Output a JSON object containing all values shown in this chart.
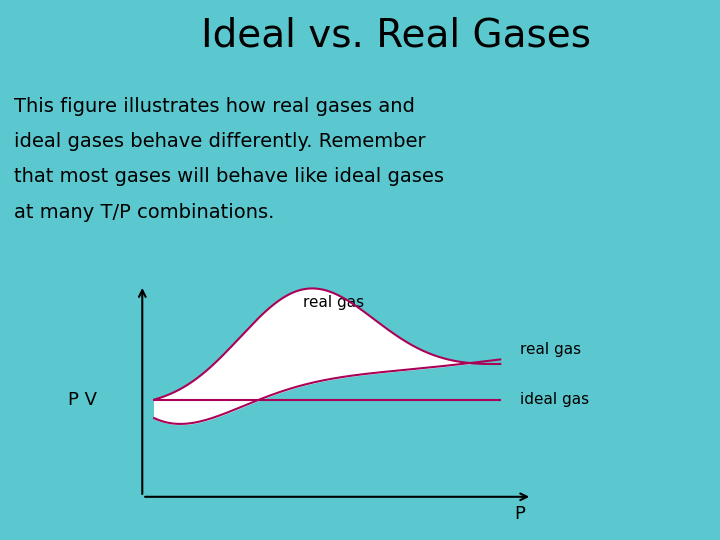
{
  "bg_color": "#5BC8D0",
  "title": "Ideal vs. Real Gases",
  "title_fontsize": 28,
  "title_color": "#000000",
  "subtitle_lines": [
    "This figure illustrates how real gases and",
    "ideal gases behave differently. Remember",
    "that most gases will behave like ideal gases",
    "at many T/P combinations."
  ],
  "subtitle_fontsize": 14,
  "subtitle_color": "#000000",
  "ylabel": "P V",
  "xlabel": "P",
  "axis_color": "#000000",
  "curve_color": "#AA0055",
  "fill_color": "#FFFFFF",
  "label_real_gas_top": "real gas",
  "label_real_gas_right": "real gas",
  "label_ideal_gas": "ideal gas",
  "label_fontsize": 11
}
